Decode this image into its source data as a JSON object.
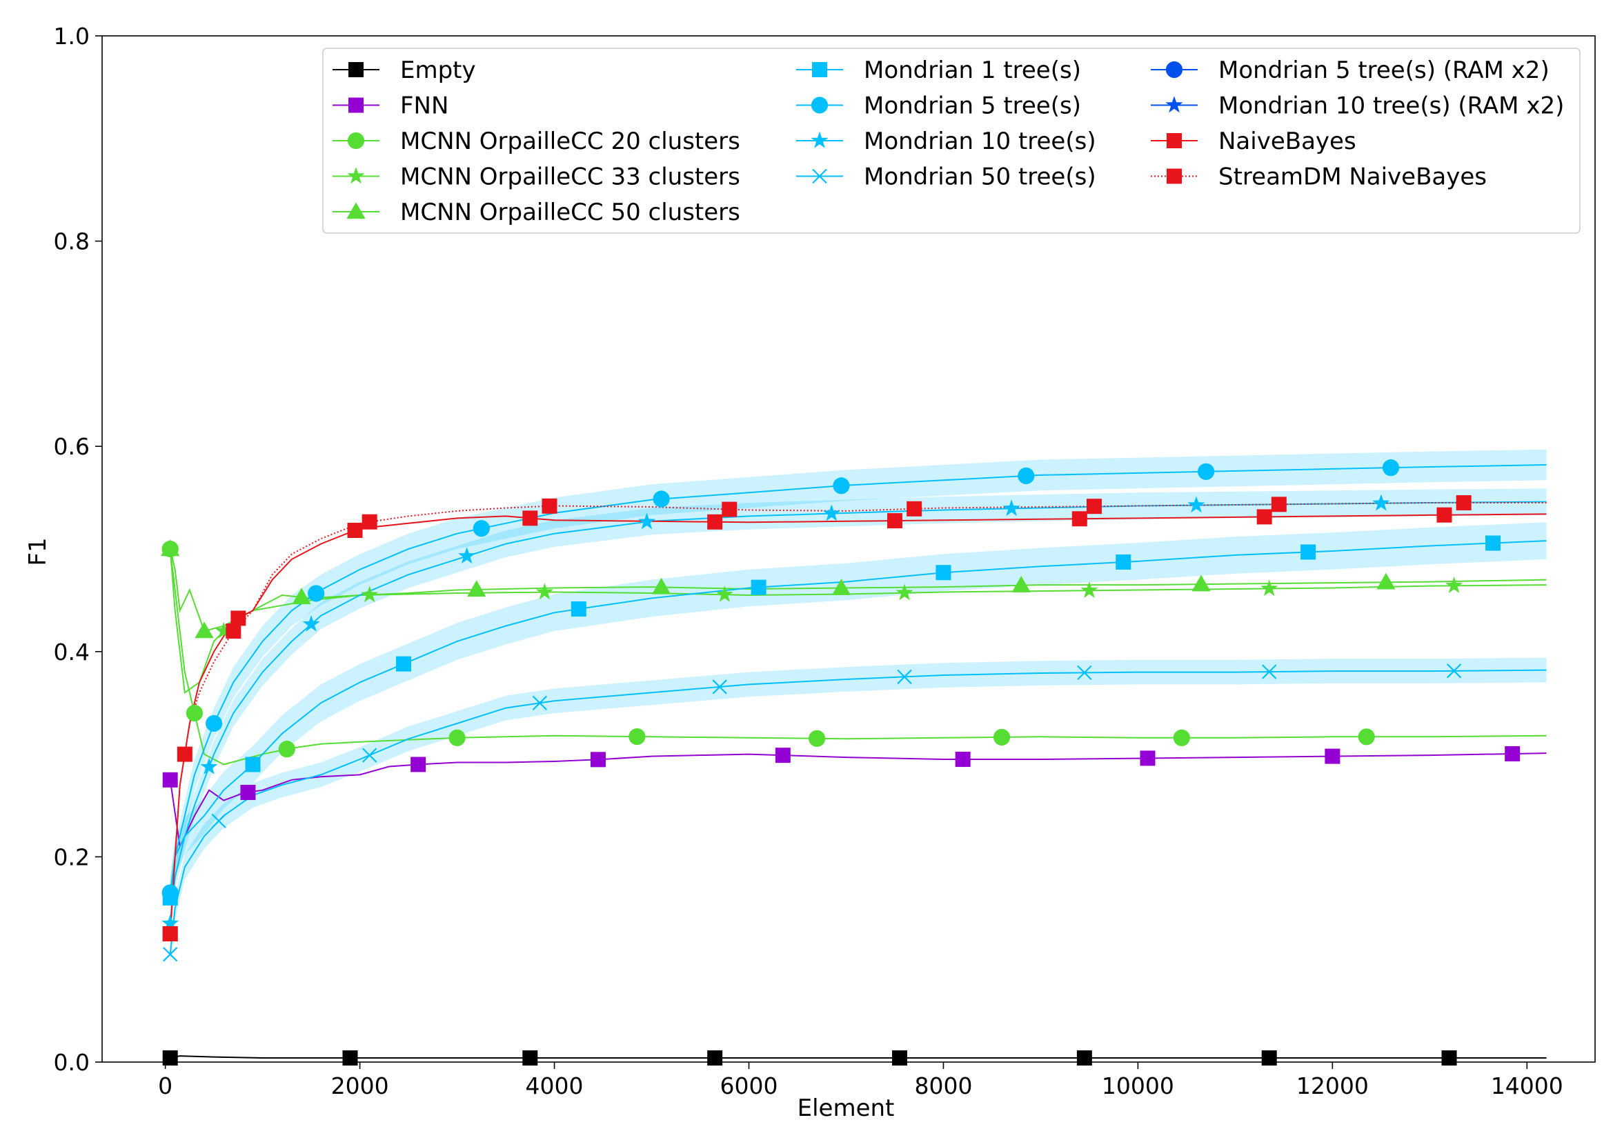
{
  "chart_data": {
    "type": "line",
    "title": "",
    "xlabel": "Element",
    "ylabel": "F1",
    "xlim": [
      -650,
      14700
    ],
    "ylim": [
      0.0,
      1.0
    ],
    "xticks": [
      0,
      2000,
      4000,
      6000,
      8000,
      10000,
      12000,
      14000
    ],
    "xtick_labels": [
      "0",
      "2000",
      "4000",
      "6000",
      "8000",
      "10000",
      "12000",
      "14000"
    ],
    "yticks": [
      0.0,
      0.2,
      0.4,
      0.6,
      0.8,
      1.0
    ],
    "ytick_labels": [
      "0.0",
      "0.2",
      "0.4",
      "0.6",
      "0.8",
      "1.0"
    ],
    "grid": false,
    "legend_position": "top-right",
    "series": [
      {
        "name": "Empty",
        "color": "#000000",
        "marker": "square",
        "dash": "solid",
        "x": [
          50,
          150,
          500,
          1000,
          2000,
          4000,
          6000,
          8000,
          10000,
          12000,
          14200
        ],
        "y": [
          0.004,
          0.006,
          0.005,
          0.004,
          0.004,
          0.004,
          0.004,
          0.004,
          0.004,
          0.004,
          0.004
        ],
        "marker_x": [
          50,
          1900,
          3750,
          5650,
          7550,
          9450,
          11350,
          13200
        ]
      },
      {
        "name": "FNN",
        "color": "#9400d3",
        "marker": "square",
        "dash": "solid",
        "x": [
          50,
          150,
          300,
          450,
          600,
          800,
          1000,
          1300,
          1600,
          2000,
          2300,
          2600,
          3000,
          3500,
          4000,
          4500,
          5000,
          6000,
          7000,
          8000,
          9000,
          10000,
          11000,
          12000,
          13000,
          14200
        ],
        "y": [
          0.275,
          0.21,
          0.24,
          0.265,
          0.255,
          0.262,
          0.265,
          0.275,
          0.278,
          0.28,
          0.288,
          0.29,
          0.292,
          0.292,
          0.293,
          0.295,
          0.298,
          0.3,
          0.297,
          0.295,
          0.295,
          0.296,
          0.297,
          0.298,
          0.299,
          0.301
        ],
        "marker_x": [
          50,
          850,
          2600,
          4450,
          6350,
          8200,
          10100,
          12000,
          13850
        ]
      },
      {
        "name": "MCNN OrpailleCC 20 clusters",
        "color": "#55dd33",
        "marker": "circle",
        "dash": "solid",
        "x": [
          50,
          100,
          200,
          300,
          400,
          600,
          800,
          1000,
          1300,
          1600,
          2000,
          2500,
          3000,
          3500,
          4000,
          5000,
          6000,
          7000,
          8000,
          9000,
          10000,
          11000,
          12000,
          13000,
          14200
        ],
        "y": [
          0.5,
          0.46,
          0.38,
          0.34,
          0.3,
          0.29,
          0.295,
          0.3,
          0.306,
          0.31,
          0.312,
          0.314,
          0.316,
          0.317,
          0.318,
          0.317,
          0.316,
          0.315,
          0.316,
          0.317,
          0.316,
          0.316,
          0.317,
          0.317,
          0.318
        ],
        "marker_x": [
          50,
          300,
          1250,
          3000,
          4850,
          6700,
          8600,
          10450,
          12350
        ]
      },
      {
        "name": "MCNN OrpailleCC 33 clusters",
        "color": "#55dd33",
        "marker": "star",
        "dash": "solid",
        "x": [
          50,
          100,
          200,
          350,
          500,
          700,
          900,
          1200,
          1500,
          2000,
          3000,
          4000,
          5000,
          6000,
          7000,
          8000,
          9000,
          10000,
          11000,
          12000,
          13000,
          14200
        ],
        "y": [
          0.5,
          0.44,
          0.36,
          0.37,
          0.41,
          0.43,
          0.44,
          0.445,
          0.45,
          0.455,
          0.457,
          0.458,
          0.457,
          0.455,
          0.456,
          0.458,
          0.459,
          0.46,
          0.461,
          0.462,
          0.464,
          0.465
        ],
        "marker_x": [
          50,
          600,
          2100,
          3900,
          5750,
          7600,
          9500,
          11350,
          13250
        ]
      },
      {
        "name": "MCNN OrpailleCC 50 clusters",
        "color": "#55dd33",
        "marker": "triangle",
        "dash": "solid",
        "x": [
          50,
          100,
          150,
          250,
          400,
          600,
          800,
          1000,
          1200,
          1500,
          2000,
          2500,
          3000,
          4000,
          5000,
          6000,
          7000,
          8000,
          9000,
          10000,
          11000,
          12000,
          13000,
          14200
        ],
        "y": [
          0.5,
          0.48,
          0.44,
          0.46,
          0.42,
          0.425,
          0.435,
          0.445,
          0.455,
          0.452,
          0.455,
          0.457,
          0.46,
          0.462,
          0.463,
          0.461,
          0.462,
          0.463,
          0.465,
          0.465,
          0.466,
          0.467,
          0.468,
          0.47
        ],
        "marker_x": [
          50,
          400,
          1400,
          3200,
          5100,
          6950,
          8800,
          10650,
          12550
        ]
      },
      {
        "name": "Mondrian 1 tree(s)",
        "color": "#00bfff",
        "marker": "square",
        "dash": "solid",
        "x": [
          50,
          100,
          200,
          400,
          600,
          900,
          1200,
          1600,
          2000,
          2500,
          3000,
          3500,
          4000,
          4500,
          5000,
          6000,
          7000,
          8000,
          9000,
          10000,
          11000,
          12000,
          13000,
          14200
        ],
        "y": [
          0.16,
          0.2,
          0.22,
          0.24,
          0.265,
          0.29,
          0.32,
          0.35,
          0.37,
          0.39,
          0.41,
          0.425,
          0.438,
          0.445,
          0.452,
          0.462,
          0.468,
          0.477,
          0.483,
          0.488,
          0.494,
          0.498,
          0.503,
          0.508
        ],
        "band": 0.018,
        "marker_x": [
          50,
          900,
          2450,
          4250,
          6100,
          8000,
          9850,
          11750,
          13650
        ]
      },
      {
        "name": "Mondrian 5 tree(s)",
        "color": "#00bfff",
        "marker": "circle",
        "dash": "solid",
        "x": [
          50,
          100,
          200,
          300,
          500,
          700,
          1000,
          1300,
          1600,
          2000,
          2500,
          3000,
          3500,
          4000,
          5000,
          6000,
          7000,
          8000,
          9000,
          10000,
          11000,
          12000,
          13000,
          14200
        ],
        "y": [
          0.165,
          0.2,
          0.24,
          0.28,
          0.33,
          0.37,
          0.41,
          0.44,
          0.46,
          0.48,
          0.5,
          0.515,
          0.525,
          0.535,
          0.548,
          0.555,
          0.562,
          0.567,
          0.572,
          0.574,
          0.576,
          0.578,
          0.58,
          0.582
        ],
        "band": 0.015,
        "marker_x": [
          50,
          500,
          1550,
          3250,
          5100,
          6950,
          8850,
          10700,
          12600
        ]
      },
      {
        "name": "Mondrian 10 tree(s)",
        "color": "#00bfff",
        "marker": "star",
        "dash": "solid",
        "x": [
          50,
          100,
          200,
          300,
          500,
          700,
          1000,
          1300,
          1600,
          2000,
          2500,
          3000,
          3500,
          4000,
          5000,
          6000,
          7000,
          8000,
          9000,
          10000,
          11000,
          12000,
          13000,
          14200
        ],
        "y": [
          0.135,
          0.18,
          0.22,
          0.25,
          0.3,
          0.34,
          0.38,
          0.41,
          0.435,
          0.455,
          0.475,
          0.49,
          0.505,
          0.515,
          0.527,
          0.532,
          0.535,
          0.538,
          0.54,
          0.542,
          0.543,
          0.544,
          0.545,
          0.546
        ],
        "band": 0.013,
        "marker_x": [
          50,
          450,
          1500,
          3100,
          4950,
          6850,
          8700,
          10600,
          12500
        ]
      },
      {
        "name": "Mondrian 50 tree(s)",
        "color": "#00bfff",
        "marker": "x",
        "dash": "solid",
        "x": [
          50,
          100,
          200,
          400,
          600,
          900,
          1200,
          1600,
          2000,
          2500,
          3000,
          3500,
          4000,
          5000,
          6000,
          7000,
          8000,
          9000,
          10000,
          11000,
          12000,
          13000,
          14200
        ],
        "y": [
          0.105,
          0.15,
          0.19,
          0.22,
          0.24,
          0.26,
          0.27,
          0.28,
          0.295,
          0.315,
          0.33,
          0.345,
          0.352,
          0.36,
          0.368,
          0.373,
          0.377,
          0.379,
          0.38,
          0.38,
          0.381,
          0.381,
          0.382
        ],
        "band": 0.012,
        "marker_x": [
          50,
          550,
          2100,
          3850,
          5700,
          7600,
          9450,
          11350,
          13250
        ]
      },
      {
        "name": "Mondrian 5 tree(s) (RAM x2)",
        "color": "#0050ee",
        "marker": "circle",
        "dash": "solid",
        "x": [],
        "y": [],
        "marker_x": []
      },
      {
        "name": "Mondrian 10 tree(s) (RAM x2)",
        "color": "#0050ee",
        "marker": "star",
        "dash": "solid",
        "x": [],
        "y": [],
        "marker_x": []
      },
      {
        "name": "NaiveBayes",
        "color": "#e8141c",
        "marker": "square",
        "dash": "solid",
        "x": [
          50,
          100,
          150,
          250,
          350,
          500,
          700,
          900,
          1100,
          1300,
          1600,
          2000,
          2500,
          3000,
          3500,
          4000,
          5000,
          6000,
          7000,
          8000,
          9000,
          10000,
          11000,
          12000,
          13000,
          14200
        ],
        "y": [
          0.125,
          0.2,
          0.27,
          0.33,
          0.37,
          0.4,
          0.43,
          0.44,
          0.47,
          0.49,
          0.505,
          0.52,
          0.525,
          0.53,
          0.532,
          0.528,
          0.527,
          0.526,
          0.527,
          0.528,
          0.529,
          0.53,
          0.531,
          0.532,
          0.533,
          0.534
        ],
        "marker_x": [
          50,
          200,
          750,
          1950,
          3750,
          5650,
          7500,
          9400,
          11300,
          13150
        ]
      },
      {
        "name": "StreamDM NaiveBayes",
        "color": "#e8141c",
        "marker": "square",
        "dash": "dotted",
        "x": [
          50,
          100,
          150,
          250,
          350,
          500,
          700,
          900,
          1100,
          1300,
          1600,
          2000,
          2500,
          3000,
          3500,
          4000,
          5000,
          6000,
          7000,
          8000,
          9000,
          10000,
          11000,
          12000,
          13000,
          14200
        ],
        "y": [
          0.125,
          0.2,
          0.27,
          0.33,
          0.36,
          0.39,
          0.42,
          0.44,
          0.475,
          0.495,
          0.51,
          0.525,
          0.532,
          0.537,
          0.54,
          0.542,
          0.541,
          0.538,
          0.537,
          0.54,
          0.541,
          0.542,
          0.543,
          0.544,
          0.545,
          0.545
        ],
        "marker_x": [
          50,
          700,
          2100,
          3950,
          5800,
          7700,
          9550,
          11450,
          13350
        ]
      }
    ],
    "legend": {
      "columns": [
        [
          "Empty",
          "FNN",
          "MCNN OrpailleCC 20 clusters",
          "MCNN OrpailleCC 33 clusters",
          "MCNN OrpailleCC 50 clusters"
        ],
        [
          "Mondrian 1 tree(s)",
          "Mondrian 5 tree(s)",
          "Mondrian 10 tree(s)",
          "Mondrian 50 tree(s)"
        ],
        [
          "Mondrian 5 tree(s) (RAM x2)",
          "Mondrian 10 tree(s) (RAM x2)",
          "NaiveBayes",
          "StreamDM NaiveBayes"
        ]
      ]
    }
  }
}
